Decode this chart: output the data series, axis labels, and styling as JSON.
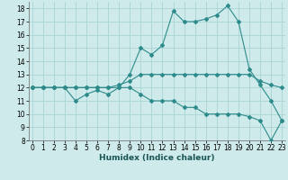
{
  "xlabel": "Humidex (Indice chaleur)",
  "x": [
    0,
    1,
    2,
    3,
    4,
    5,
    6,
    7,
    8,
    9,
    10,
    11,
    12,
    13,
    14,
    15,
    16,
    17,
    18,
    19,
    20,
    21,
    22,
    23
  ],
  "line1": [
    12,
    12,
    12,
    12,
    11,
    11.5,
    11.8,
    11.5,
    12,
    13,
    15,
    14.5,
    15.2,
    17.8,
    17,
    17,
    17.2,
    17.5,
    18.2,
    17,
    13.4,
    12.2,
    11,
    9.5
  ],
  "line2": [
    12,
    12,
    12,
    12,
    12,
    12,
    12,
    12,
    12.2,
    12.5,
    13,
    13,
    13,
    13,
    13,
    13,
    13,
    13,
    13,
    13,
    13,
    12.5,
    12.2,
    12
  ],
  "line3": [
    12,
    12,
    12,
    12,
    12,
    12,
    12,
    12,
    12,
    12,
    11.5,
    11,
    11,
    11,
    10.5,
    10.5,
    10,
    10,
    10,
    10,
    9.8,
    9.5,
    8,
    9.5
  ],
  "line_color": "#2e8b8b",
  "bg_color": "#ceeaea",
  "grid_color": "#aad4d4",
  "ylim": [
    8,
    18.5
  ],
  "xlim": [
    -0.3,
    23.3
  ],
  "yticks": [
    8,
    9,
    10,
    11,
    12,
    13,
    14,
    15,
    16,
    17,
    18
  ],
  "xticks": [
    0,
    1,
    2,
    3,
    4,
    5,
    6,
    7,
    8,
    9,
    10,
    11,
    12,
    13,
    14,
    15,
    16,
    17,
    18,
    19,
    20,
    21,
    22,
    23
  ],
  "xlabel_fontsize": 6.5,
  "tick_fontsize": 5.5
}
